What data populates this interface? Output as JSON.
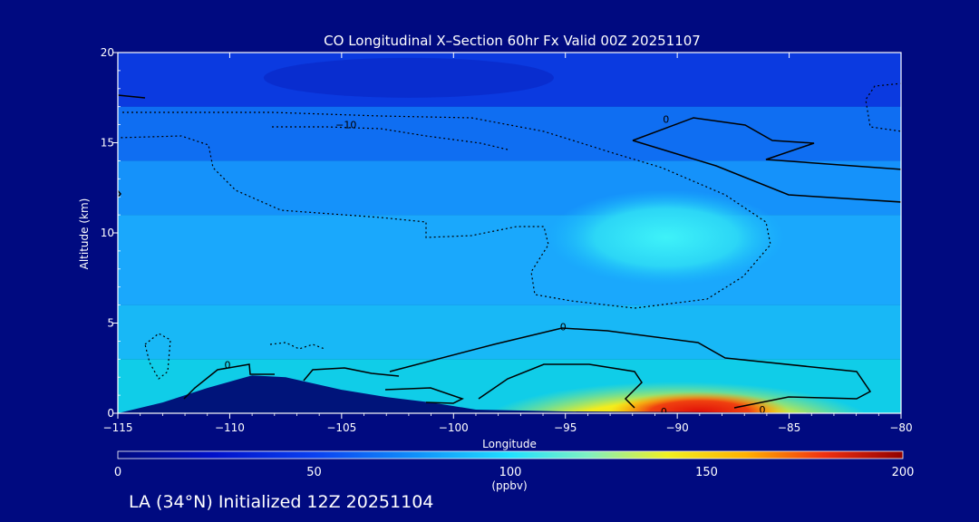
{
  "chart_data": {
    "type": "heatmap",
    "title": "CO Longitudinal X–Section 60hr  Fx Valid 00Z 20251107",
    "xlabel": "Longitude",
    "ylabel": "Altitude (km)",
    "xlim": [
      -115,
      -80
    ],
    "ylim": [
      0,
      20
    ],
    "x_ticks": [
      -115,
      -110,
      -105,
      -100,
      -95,
      -90,
      -85,
      -80
    ],
    "x_tick_labels": [
      "−115",
      "−110",
      "−105",
      "−100",
      "−95",
      "−90",
      "−85",
      "−80"
    ],
    "y_ticks": [
      0,
      5,
      10,
      15,
      20
    ],
    "y_tick_labels": [
      "0",
      "5",
      "10",
      "15",
      "20"
    ],
    "colorbar": {
      "min": 0,
      "max": 200,
      "ticks": [
        0,
        50,
        100,
        150,
        200
      ],
      "tick_labels": [
        "0",
        "50",
        "100",
        "150",
        "200"
      ],
      "unit": "(ppbv)"
    },
    "contour_labels": [
      {
        "text": "−10",
        "lon": -104.8,
        "alt": 16.0
      },
      {
        "text": "0",
        "lon": -90.5,
        "alt": 16.3
      },
      {
        "text": "0",
        "lon": -95.1,
        "alt": 4.8
      },
      {
        "text": "0",
        "lon": -110.1,
        "alt": 2.7
      },
      {
        "text": "0",
        "lon": -90.6,
        "alt": 0.1
      },
      {
        "text": "0",
        "lon": -86.2,
        "alt": 0.2
      }
    ],
    "regions": [
      {
        "name": "upper-layer",
        "lon": [
          -115,
          -80
        ],
        "alt": [
          17,
          20
        ],
        "ppbv": 22,
        "color": "#0b3ae0"
      },
      {
        "name": "layer-16km",
        "lon": [
          -115,
          -80
        ],
        "alt": [
          14,
          17
        ],
        "ppbv": 40,
        "color": "#0f6ef2"
      },
      {
        "name": "layer-12km",
        "lon": [
          -115,
          -80
        ],
        "alt": [
          11,
          14
        ],
        "ppbv": 52,
        "color": "#1592fa"
      },
      {
        "name": "layer-8km",
        "lon": [
          -115,
          -80
        ],
        "alt": [
          6,
          11
        ],
        "ppbv": 58,
        "color": "#1aa8fc"
      },
      {
        "name": "layer-4km",
        "lon": [
          -115,
          -80
        ],
        "alt": [
          3,
          6
        ],
        "ppbv": 65,
        "color": "#18b8f6"
      },
      {
        "name": "layer-1km",
        "lon": [
          -115,
          -80
        ],
        "alt": [
          0,
          3
        ],
        "ppbv": 75,
        "color": "#10cde8"
      },
      {
        "name": "plume-9-11km",
        "lon": [
          -95,
          -86
        ],
        "alt": [
          8,
          11.5
        ],
        "ppbv": 85,
        "color": "#2fe6f6"
      },
      {
        "name": "surface-plume",
        "lon": [
          -98,
          -82
        ],
        "alt": [
          0,
          2
        ],
        "ppbv": 135,
        "color": "#f4ec1c"
      },
      {
        "name": "surface-max",
        "lon": [
          -93,
          -85
        ],
        "alt": [
          0,
          0.8
        ],
        "ppbv": 175,
        "color": "#e02010"
      }
    ],
    "terrain": [
      {
        "lon": -115,
        "alt": 0.0
      },
      {
        "lon": -113,
        "alt": 0.6
      },
      {
        "lon": -111,
        "alt": 1.4
      },
      {
        "lon": -109,
        "alt": 2.1
      },
      {
        "lon": -107.5,
        "alt": 2.0
      },
      {
        "lon": -105,
        "alt": 1.3
      },
      {
        "lon": -103,
        "alt": 0.9
      },
      {
        "lon": -101,
        "alt": 0.6
      },
      {
        "lon": -99,
        "alt": 0.2
      },
      {
        "lon": -95,
        "alt": 0.1
      },
      {
        "lon": -80,
        "alt": 0.0
      }
    ]
  },
  "footer": {
    "caption": "LA (34°N) Initialized 12Z 20251104"
  },
  "colors": {
    "background": "#000a80",
    "axis": "#ffffff",
    "terrain": "#00147a",
    "contour": "#000000"
  }
}
